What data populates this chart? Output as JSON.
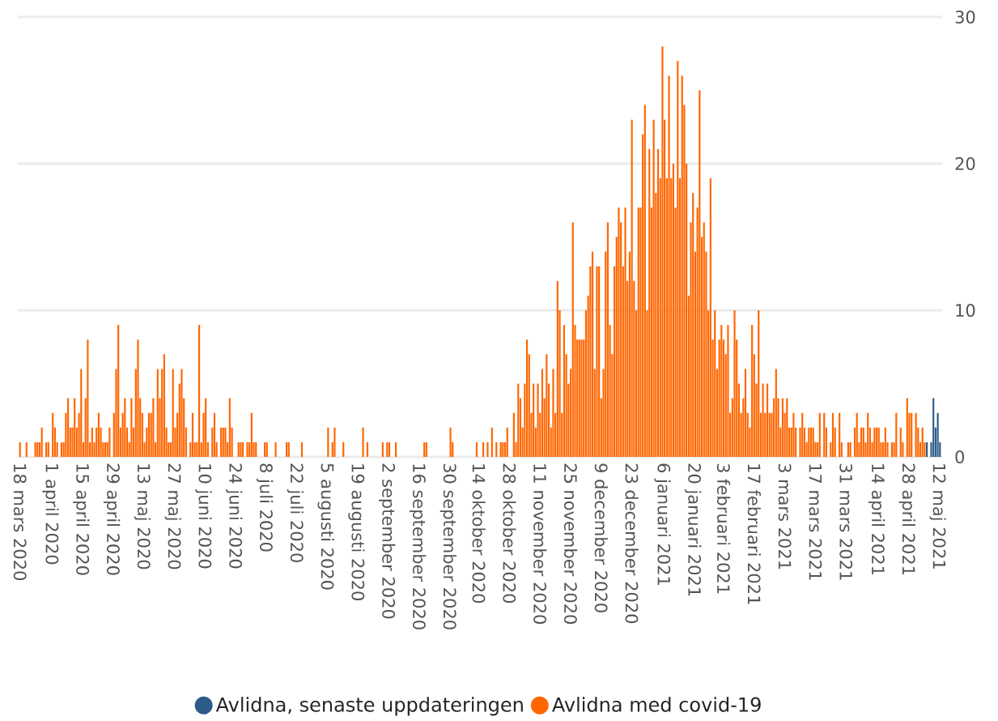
{
  "chart_data": {
    "type": "bar",
    "xlim": [
      "2020-03-17",
      "2021-05-14"
    ],
    "xticks": [
      {
        "value": "2020-03-18",
        "label": "18 mars 2020"
      },
      {
        "value": "2020-04-01",
        "label": "1 april 2020"
      },
      {
        "value": "2020-04-15",
        "label": "15 april 2020"
      },
      {
        "value": "2020-04-29",
        "label": "29 april 2020"
      },
      {
        "value": "2020-05-13",
        "label": "13 maj 2020"
      },
      {
        "value": "2020-05-27",
        "label": "27 maj 2020"
      },
      {
        "value": "2020-06-10",
        "label": "10 juni 2020"
      },
      {
        "value": "2020-06-24",
        "label": "24 juni 2020"
      },
      {
        "value": "2020-07-08",
        "label": "8 juli 2020"
      },
      {
        "value": "2020-07-22",
        "label": "22 juli 2020"
      },
      {
        "value": "2020-08-05",
        "label": "5 augusti 2020"
      },
      {
        "value": "2020-08-19",
        "label": "19 augusti 2020"
      },
      {
        "value": "2020-09-02",
        "label": "2 september 2020"
      },
      {
        "value": "2020-09-16",
        "label": "16 september 2020"
      },
      {
        "value": "2020-09-30",
        "label": "30 september 2020"
      },
      {
        "value": "2020-10-14",
        "label": "14 oktober 2020"
      },
      {
        "value": "2020-10-28",
        "label": "28 oktober 2020"
      },
      {
        "value": "2020-11-11",
        "label": "11 november 2020"
      },
      {
        "value": "2020-11-25",
        "label": "25 november 2020"
      },
      {
        "value": "2020-12-09",
        "label": "9 december 2020"
      },
      {
        "value": "2020-12-23",
        "label": "23 december 2020"
      },
      {
        "value": "2021-01-06",
        "label": "6 januari 2021"
      },
      {
        "value": "2021-01-20",
        "label": "20 januari 2021"
      },
      {
        "value": "2021-02-03",
        "label": "3 februari 2021"
      },
      {
        "value": "2021-02-17",
        "label": "17 februari 2021"
      },
      {
        "value": "2021-03-03",
        "label": "3 mars 2021"
      },
      {
        "value": "2021-03-17",
        "label": "17 mars 2021"
      },
      {
        "value": "2021-03-31",
        "label": "31 mars 2021"
      },
      {
        "value": "2021-04-14",
        "label": "14 april 2021"
      },
      {
        "value": "2021-04-28",
        "label": "28 april 2021"
      },
      {
        "value": "2021-05-12",
        "label": "12 maj 2021"
      }
    ],
    "ylim": [
      0,
      30
    ],
    "yticks": [
      0,
      10,
      20,
      30
    ],
    "grid": "y",
    "legend": "bottom",
    "series": [
      {
        "name": "Avlidna, senaste uppdateringen",
        "color": "#2d5b8a",
        "x": [
          "2021-05-07",
          "2021-05-09",
          "2021-05-10",
          "2021-05-11",
          "2021-05-12",
          "2021-05-13"
        ],
        "values": [
          1,
          1,
          4,
          2,
          3,
          1
        ]
      },
      {
        "name": "Avlidna med covid-19",
        "color": "#ff6600",
        "x": [
          "2020-03-18",
          "2020-03-21",
          "2020-03-25",
          "2020-03-26",
          "2020-03-27",
          "2020-03-28",
          "2020-03-30",
          "2020-03-31",
          "2020-04-02",
          "2020-04-03",
          "2020-04-04",
          "2020-04-06",
          "2020-04-07",
          "2020-04-08",
          "2020-04-09",
          "2020-04-10",
          "2020-04-11",
          "2020-04-12",
          "2020-04-13",
          "2020-04-14",
          "2020-04-15",
          "2020-04-16",
          "2020-04-17",
          "2020-04-18",
          "2020-04-19",
          "2020-04-20",
          "2020-04-21",
          "2020-04-22",
          "2020-04-23",
          "2020-04-24",
          "2020-04-25",
          "2020-04-26",
          "2020-04-27",
          "2020-04-28",
          "2020-04-30",
          "2020-05-01",
          "2020-05-02",
          "2020-05-03",
          "2020-05-04",
          "2020-05-05",
          "2020-05-06",
          "2020-05-07",
          "2020-05-08",
          "2020-05-09",
          "2020-05-10",
          "2020-05-11",
          "2020-05-12",
          "2020-05-13",
          "2020-05-14",
          "2020-05-15",
          "2020-05-16",
          "2020-05-17",
          "2020-05-18",
          "2020-05-19",
          "2020-05-20",
          "2020-05-21",
          "2020-05-22",
          "2020-05-23",
          "2020-05-24",
          "2020-05-25",
          "2020-05-26",
          "2020-05-27",
          "2020-05-28",
          "2020-05-29",
          "2020-05-30",
          "2020-05-31",
          "2020-06-01",
          "2020-06-02",
          "2020-06-04",
          "2020-06-05",
          "2020-06-06",
          "2020-06-07",
          "2020-06-08",
          "2020-06-09",
          "2020-06-10",
          "2020-06-11",
          "2020-06-12",
          "2020-06-14",
          "2020-06-15",
          "2020-06-16",
          "2020-06-18",
          "2020-06-19",
          "2020-06-20",
          "2020-06-21",
          "2020-06-22",
          "2020-06-23",
          "2020-06-26",
          "2020-06-27",
          "2020-06-28",
          "2020-06-30",
          "2020-07-01",
          "2020-07-02",
          "2020-07-03",
          "2020-07-04",
          "2020-07-08",
          "2020-07-09",
          "2020-07-13",
          "2020-07-18",
          "2020-07-19",
          "2020-07-25",
          "2020-08-06",
          "2020-08-08",
          "2020-08-09",
          "2020-08-13",
          "2020-08-22",
          "2020-08-24",
          "2020-08-31",
          "2020-09-02",
          "2020-09-03",
          "2020-09-06",
          "2020-09-19",
          "2020-09-20",
          "2020-10-01",
          "2020-10-02",
          "2020-10-13",
          "2020-10-16",
          "2020-10-18",
          "2020-10-20",
          "2020-10-22",
          "2020-10-24",
          "2020-10-25",
          "2020-10-26",
          "2020-10-27",
          "2020-10-30",
          "2020-10-31",
          "2020-11-01",
          "2020-11-02",
          "2020-11-03",
          "2020-11-04",
          "2020-11-05",
          "2020-11-06",
          "2020-11-07",
          "2020-11-08",
          "2020-11-09",
          "2020-11-10",
          "2020-11-11",
          "2020-11-12",
          "2020-11-13",
          "2020-11-14",
          "2020-11-15",
          "2020-11-16",
          "2020-11-17",
          "2020-11-18",
          "2020-11-19",
          "2020-11-20",
          "2020-11-21",
          "2020-11-22",
          "2020-11-23",
          "2020-11-24",
          "2020-11-25",
          "2020-11-26",
          "2020-11-27",
          "2020-11-28",
          "2020-11-29",
          "2020-11-30",
          "2020-12-01",
          "2020-12-02",
          "2020-12-03",
          "2020-12-04",
          "2020-12-05",
          "2020-12-06",
          "2020-12-07",
          "2020-12-08",
          "2020-12-09",
          "2020-12-10",
          "2020-12-11",
          "2020-12-12",
          "2020-12-13",
          "2020-12-14",
          "2020-12-15",
          "2020-12-16",
          "2020-12-17",
          "2020-12-18",
          "2020-12-19",
          "2020-12-20",
          "2020-12-21",
          "2020-12-22",
          "2020-12-23",
          "2020-12-24",
          "2020-12-25",
          "2020-12-26",
          "2020-12-27",
          "2020-12-28",
          "2020-12-29",
          "2020-12-30",
          "2020-12-31",
          "2021-01-01",
          "2021-01-02",
          "2021-01-03",
          "2021-01-04",
          "2021-01-05",
          "2021-01-06",
          "2021-01-07",
          "2021-01-08",
          "2021-01-09",
          "2021-01-10",
          "2021-01-11",
          "2021-01-12",
          "2021-01-13",
          "2021-01-14",
          "2021-01-15",
          "2021-01-16",
          "2021-01-17",
          "2021-01-18",
          "2021-01-19",
          "2021-01-20",
          "2021-01-21",
          "2021-01-22",
          "2021-01-23",
          "2021-01-24",
          "2021-01-25",
          "2021-01-26",
          "2021-01-27",
          "2021-01-28",
          "2021-01-29",
          "2021-01-30",
          "2021-01-31",
          "2021-02-01",
          "2021-02-02",
          "2021-02-03",
          "2021-02-04",
          "2021-02-05",
          "2021-02-06",
          "2021-02-07",
          "2021-02-08",
          "2021-02-09",
          "2021-02-10",
          "2021-02-11",
          "2021-02-12",
          "2021-02-13",
          "2021-02-14",
          "2021-02-15",
          "2021-02-16",
          "2021-02-17",
          "2021-02-18",
          "2021-02-19",
          "2021-02-20",
          "2021-02-21",
          "2021-02-22",
          "2021-02-23",
          "2021-02-24",
          "2021-02-25",
          "2021-02-26",
          "2021-02-27",
          "2021-02-28",
          "2021-03-01",
          "2021-03-02",
          "2021-03-03",
          "2021-03-04",
          "2021-03-05",
          "2021-03-06",
          "2021-03-07",
          "2021-03-08",
          "2021-03-10",
          "2021-03-11",
          "2021-03-12",
          "2021-03-13",
          "2021-03-14",
          "2021-03-15",
          "2021-03-16",
          "2021-03-17",
          "2021-03-18",
          "2021-03-19",
          "2021-03-21",
          "2021-03-22",
          "2021-03-24",
          "2021-03-25",
          "2021-03-26",
          "2021-03-28",
          "2021-03-29",
          "2021-04-01",
          "2021-04-02",
          "2021-04-04",
          "2021-04-05",
          "2021-04-06",
          "2021-04-07",
          "2021-04-08",
          "2021-04-09",
          "2021-04-10",
          "2021-04-11",
          "2021-04-12",
          "2021-04-13",
          "2021-04-14",
          "2021-04-15",
          "2021-04-16",
          "2021-04-17",
          "2021-04-18",
          "2021-04-19",
          "2021-04-21",
          "2021-04-22",
          "2021-04-23",
          "2021-04-25",
          "2021-04-26",
          "2021-04-28",
          "2021-04-29",
          "2021-04-30",
          "2021-05-02",
          "2021-05-03",
          "2021-05-04",
          "2021-05-05",
          "2021-05-06"
        ],
        "values": [
          1,
          1,
          1,
          1,
          1,
          2,
          1,
          1,
          3,
          2,
          1,
          1,
          1,
          3,
          4,
          2,
          2,
          4,
          2,
          3,
          6,
          1,
          4,
          8,
          1,
          2,
          1,
          2,
          3,
          2,
          1,
          1,
          1,
          2,
          3,
          6,
          9,
          2,
          3,
          4,
          2,
          1,
          4,
          2,
          6,
          8,
          4,
          3,
          1,
          2,
          3,
          3,
          4,
          1,
          6,
          4,
          6,
          7,
          2,
          1,
          1,
          6,
          2,
          3,
          5,
          6,
          4,
          2,
          1,
          3,
          1,
          1,
          9,
          1,
          3,
          4,
          1,
          2,
          3,
          1,
          2,
          2,
          2,
          1,
          4,
          2,
          1,
          1,
          1,
          1,
          1,
          3,
          1,
          1,
          1,
          1,
          1,
          1,
          1,
          1,
          2,
          1,
          2,
          1,
          2,
          1,
          1,
          1,
          1,
          1,
          1,
          1,
          2,
          1,
          1,
          1,
          1,
          2,
          1,
          1,
          1,
          1,
          2,
          3,
          1,
          5,
          4,
          2,
          5,
          8,
          7,
          3,
          5,
          2,
          5,
          3,
          6,
          4,
          7,
          5,
          2,
          6,
          3,
          12,
          10,
          3,
          9,
          7,
          5,
          6,
          16,
          9,
          8,
          8,
          8,
          8,
          10,
          11,
          13,
          14,
          6,
          13,
          13,
          4,
          6,
          14,
          16,
          9,
          7,
          13,
          15,
          17,
          16,
          13,
          17,
          12,
          14,
          23,
          12,
          10,
          17,
          17,
          22,
          24,
          10,
          21,
          17,
          23,
          18,
          21,
          19,
          28,
          23,
          19,
          26,
          19,
          20,
          17,
          27,
          19,
          26,
          24,
          20,
          11,
          16,
          18,
          14,
          17,
          25,
          15,
          16,
          14,
          10,
          19,
          8,
          10,
          6,
          8,
          9,
          8,
          7,
          9,
          3,
          4,
          10,
          8,
          5,
          3,
          4,
          6,
          3,
          2,
          9,
          7,
          5,
          10,
          3,
          5,
          3,
          5,
          3,
          3,
          4,
          6,
          4,
          2,
          4,
          3,
          4,
          2,
          2,
          3,
          2,
          2,
          3,
          2,
          1,
          2,
          2,
          2,
          1,
          1,
          3,
          3,
          2,
          1,
          3,
          2,
          3,
          1,
          1,
          1,
          2,
          3,
          1,
          2,
          2,
          1,
          3,
          2,
          1,
          2,
          2,
          2,
          1,
          1,
          2,
          1,
          1,
          1,
          3,
          2,
          1,
          4,
          3,
          3,
          3,
          2,
          1,
          2,
          1
        ]
      }
    ]
  }
}
